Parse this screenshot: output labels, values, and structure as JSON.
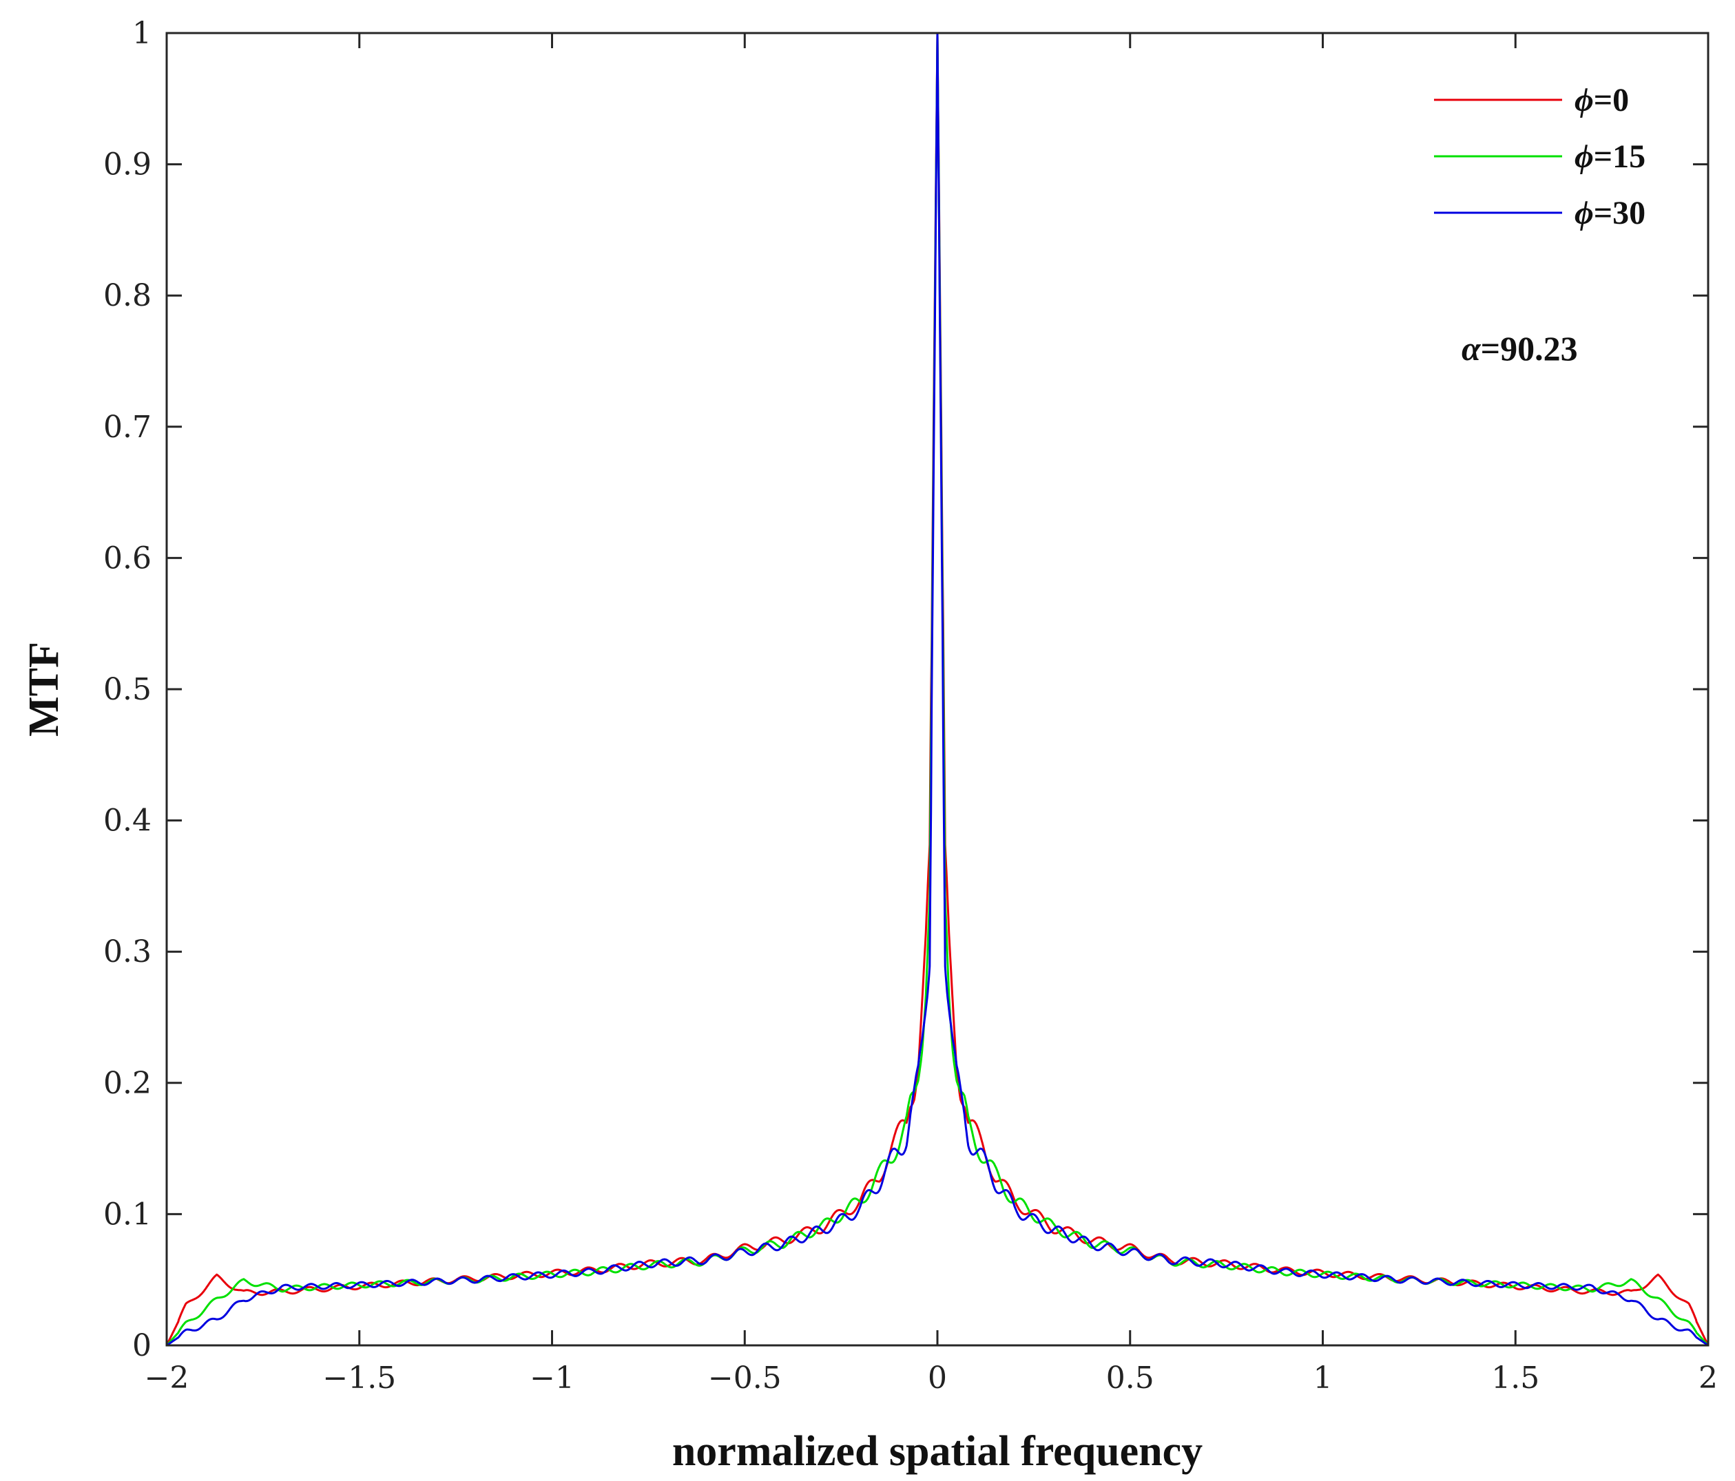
{
  "chart_data": {
    "type": "line",
    "title": "",
    "xlabel": "normalized spatial frequency",
    "ylabel": "MTF",
    "xlim": [
      -2,
      2
    ],
    "ylim": [
      0,
      1
    ],
    "xticks": [
      -2,
      -1.5,
      -1,
      -0.5,
      0,
      0.5,
      1,
      1.5,
      2
    ],
    "xtick_labels": [
      "−2",
      "−1.5",
      "−1",
      "−0.5",
      "0",
      "0.5",
      "1",
      "1.5",
      "2"
    ],
    "yticks": [
      0,
      0.1,
      0.2,
      0.3,
      0.4,
      0.5,
      0.6,
      0.7,
      0.8,
      0.9,
      1
    ],
    "ytick_labels": [
      "0",
      "0.1",
      "0.2",
      "0.3",
      "0.4",
      "0.5",
      "0.6",
      "0.7",
      "0.8",
      "0.9",
      "1"
    ],
    "grid": false,
    "legend_position": "top-right",
    "annotation": {
      "symbol": "α",
      "text": "=90.23"
    },
    "x": [
      0,
      0.01,
      0.02,
      0.03,
      0.04,
      0.05,
      0.06,
      0.07,
      0.08,
      0.1,
      0.12,
      0.15,
      0.2,
      0.25,
      0.3,
      0.4,
      0.5,
      0.6,
      0.75,
      0.9,
      1.0,
      1.2,
      1.5,
      1.7,
      1.8,
      1.87,
      1.95,
      2.0
    ],
    "series": [
      {
        "name": "ϕ=0",
        "symbol": "ϕ",
        "label_value": "=0",
        "color": "#e8000b",
        "values": [
          1.0,
          0.7,
          0.36,
          0.3,
          0.26,
          0.22,
          0.2,
          0.19,
          0.17,
          0.16,
          0.15,
          0.13,
          0.11,
          0.1,
          0.09,
          0.08,
          0.074,
          0.065,
          0.062,
          0.057,
          0.055,
          0.051,
          0.045,
          0.041,
          0.04,
          0.052,
          0.03,
          0.0
        ]
      },
      {
        "name": "ϕ=15",
        "symbol": "ϕ",
        "label_value": "=15",
        "color": "#00e000",
        "values": [
          1.0,
          0.68,
          0.34,
          0.28,
          0.24,
          0.21,
          0.19,
          0.18,
          0.165,
          0.155,
          0.145,
          0.13,
          0.11,
          0.1,
          0.09,
          0.078,
          0.072,
          0.064,
          0.061,
          0.056,
          0.054,
          0.05,
          0.046,
          0.043,
          0.049,
          0.035,
          0.016,
          0.0
        ]
      },
      {
        "name": "ϕ=30",
        "symbol": "ϕ",
        "label_value": "=30",
        "color": "#0000e0",
        "values": [
          1.0,
          0.66,
          0.31,
          0.27,
          0.23,
          0.2,
          0.185,
          0.175,
          0.16,
          0.15,
          0.14,
          0.125,
          0.105,
          0.095,
          0.088,
          0.077,
          0.071,
          0.065,
          0.062,
          0.056,
          0.054,
          0.05,
          0.046,
          0.044,
          0.035,
          0.02,
          0.01,
          0.0
        ]
      }
    ]
  }
}
